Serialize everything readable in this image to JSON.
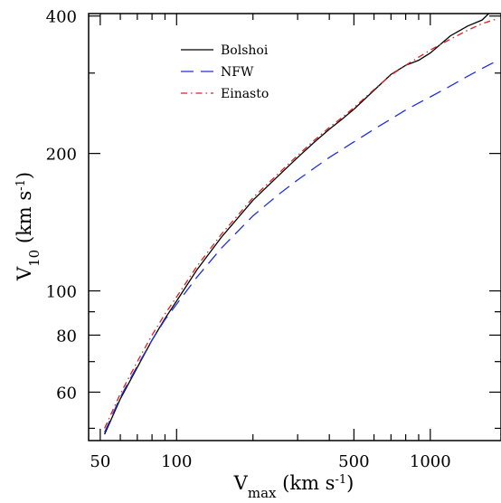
{
  "chart_data": {
    "type": "line",
    "xlabel": {
      "main": "V",
      "sub": "max",
      "units": " (km s",
      "exp": "-1",
      "close": ")"
    },
    "ylabel": {
      "main": "V",
      "sub": "10",
      "units": " (km s",
      "exp": "-1",
      "close": ")"
    },
    "xscale": "log",
    "yscale": "log",
    "xlim": [
      45,
      1900
    ],
    "ylim": [
      47,
      405
    ],
    "xticks_labeled": [
      {
        "value": 50,
        "label": "50"
      },
      {
        "value": 100,
        "label": "100"
      },
      {
        "value": 500,
        "label": "500"
      },
      {
        "value": 1000,
        "label": "1000"
      }
    ],
    "yticks_labeled": [
      {
        "value": 60,
        "label": "60"
      },
      {
        "value": 80,
        "label": "80"
      },
      {
        "value": 100,
        "label": "100"
      },
      {
        "value": 200,
        "label": "200"
      },
      {
        "value": 400,
        "label": "400"
      }
    ],
    "xticks_minor": [
      60,
      70,
      80,
      90,
      200,
      300,
      400,
      600,
      700,
      800,
      900
    ],
    "yticks_minor": [
      50,
      70,
      90,
      300
    ],
    "legend": {
      "placement": "top-left"
    },
    "series": [
      {
        "name": "Bolshoi",
        "color": "#000000",
        "style": "solid",
        "points": [
          [
            52,
            48.5
          ],
          [
            60,
            58
          ],
          [
            70,
            68
          ],
          [
            80,
            78
          ],
          [
            90,
            87
          ],
          [
            100,
            95
          ],
          [
            120,
            111
          ],
          [
            150,
            131
          ],
          [
            200,
            158
          ],
          [
            250,
            178
          ],
          [
            300,
            196
          ],
          [
            350,
            212
          ],
          [
            400,
            226
          ],
          [
            450,
            238
          ],
          [
            500,
            250
          ],
          [
            600,
            275
          ],
          [
            700,
            298
          ],
          [
            800,
            312
          ],
          [
            900,
            320
          ],
          [
            1000,
            332
          ],
          [
            1200,
            362
          ],
          [
            1400,
            380
          ],
          [
            1600,
            392
          ],
          [
            1700,
            405
          ]
        ]
      },
      {
        "name": "NFW",
        "color": "#1f2fe0",
        "style": "dashed",
        "points": [
          [
            52,
            49
          ],
          [
            60,
            58.5
          ],
          [
            70,
            68.5
          ],
          [
            80,
            78
          ],
          [
            90,
            86.5
          ],
          [
            100,
            93.5
          ],
          [
            120,
            107
          ],
          [
            150,
            124
          ],
          [
            200,
            146
          ],
          [
            250,
            162
          ],
          [
            300,
            175
          ],
          [
            350,
            186
          ],
          [
            400,
            196
          ],
          [
            500,
            212
          ],
          [
            600,
            226
          ],
          [
            700,
            238
          ],
          [
            800,
            249
          ],
          [
            900,
            258
          ],
          [
            1000,
            266
          ],
          [
            1200,
            281
          ],
          [
            1400,
            295
          ],
          [
            1600,
            307
          ],
          [
            1850,
            320
          ]
        ]
      },
      {
        "name": "Einasto",
        "color": "#e02020",
        "style": "dashdot",
        "points": [
          [
            52,
            50
          ],
          [
            60,
            59.5
          ],
          [
            70,
            70
          ],
          [
            80,
            80
          ],
          [
            90,
            89
          ],
          [
            100,
            97
          ],
          [
            120,
            113
          ],
          [
            150,
            133
          ],
          [
            200,
            160
          ],
          [
            250,
            180
          ],
          [
            300,
            198
          ],
          [
            350,
            214
          ],
          [
            400,
            228
          ],
          [
            450,
            240
          ],
          [
            500,
            252
          ],
          [
            600,
            276
          ],
          [
            700,
            297
          ],
          [
            800,
            312
          ],
          [
            900,
            325
          ],
          [
            1000,
            337
          ],
          [
            1200,
            356
          ],
          [
            1400,
            372
          ],
          [
            1600,
            385
          ],
          [
            1850,
            395
          ]
        ]
      }
    ]
  }
}
